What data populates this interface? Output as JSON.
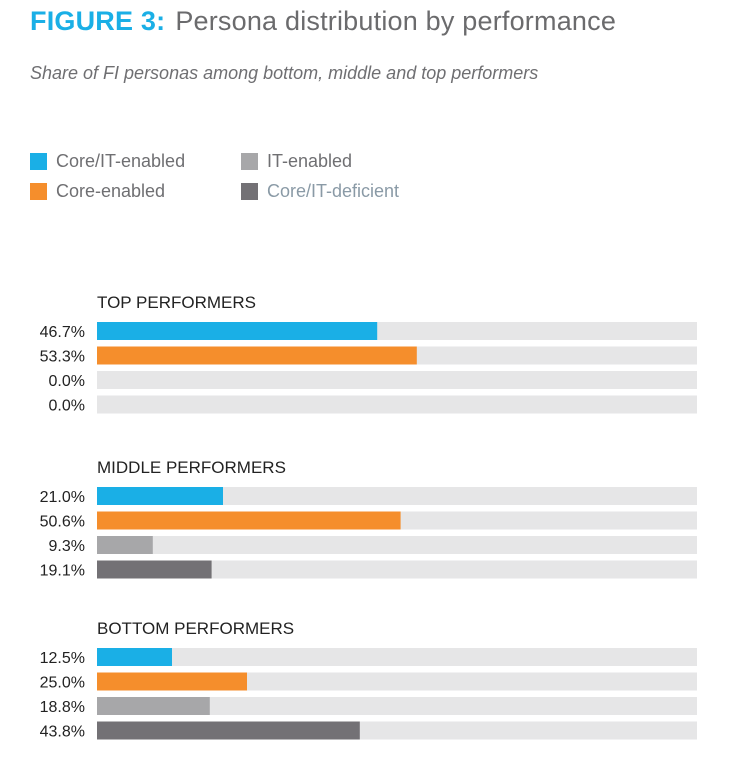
{
  "header": {
    "figure_label": "FIGURE 3:",
    "title": "Persona distribution by performance",
    "subtitle": "Share of FI personas among bottom, middle and top performers"
  },
  "chart_data": {
    "type": "bar",
    "orientation": "horizontal",
    "title": "Persona distribution by performance",
    "subtitle": "Share of FI personas among bottom, middle and top performers",
    "xlim": [
      0,
      100
    ],
    "unit": "%",
    "legend_position": "top-left",
    "series": [
      {
        "name": "Core/IT-enabled",
        "color": "#1aafe6"
      },
      {
        "name": "Core-enabled",
        "color": "#f58e2c"
      },
      {
        "name": "IT-enabled",
        "color": "#a7a7a9"
      },
      {
        "name": "Core/IT-deficient",
        "color": "#737175"
      }
    ],
    "track_color": "#e6e6e7",
    "groups": [
      {
        "title": "TOP PERFORMERS",
        "values": [
          46.7,
          53.3,
          0.0,
          0.0
        ],
        "labels": [
          "46.7%",
          "53.3%",
          "0.0%",
          "0.0%"
        ]
      },
      {
        "title": "MIDDLE PERFORMERS",
        "values": [
          21.0,
          50.6,
          9.3,
          19.1
        ],
        "labels": [
          "21.0%",
          "50.6%",
          "9.3%",
          "19.1%"
        ]
      },
      {
        "title": "BOTTOM PERFORMERS",
        "values": [
          12.5,
          25.0,
          18.8,
          43.8
        ],
        "labels": [
          "12.5%",
          "25.0%",
          "18.8%",
          "43.8%"
        ]
      }
    ]
  }
}
